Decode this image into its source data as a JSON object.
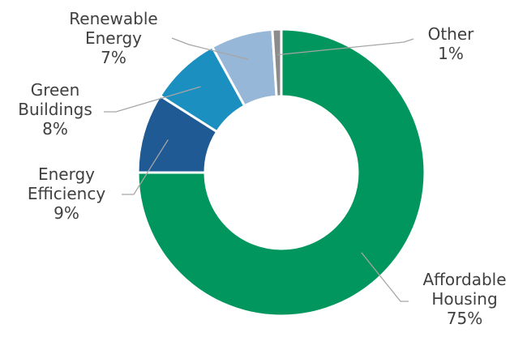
{
  "chart_data": {
    "type": "pie",
    "donut": true,
    "categories": [
      "Affordable Housing",
      "Energy Efficiency",
      "Green Buildings",
      "Renewable Energy",
      "Other"
    ],
    "values": [
      75,
      9,
      8,
      7,
      1
    ],
    "colors": [
      "#00965e",
      "#1f5a94",
      "#1a8fc0",
      "#97b7d8",
      "#8c8c8c"
    ],
    "label_lines": [
      [
        "Affordable",
        "Housing",
        "75%"
      ],
      [
        "Energy",
        "Efficiency",
        "9%"
      ],
      [
        "Green",
        "Buildings",
        "8%"
      ],
      [
        "Renewable",
        "Energy",
        "7%"
      ],
      [
        "Other",
        "1%"
      ]
    ],
    "title": "",
    "legend": "none"
  }
}
